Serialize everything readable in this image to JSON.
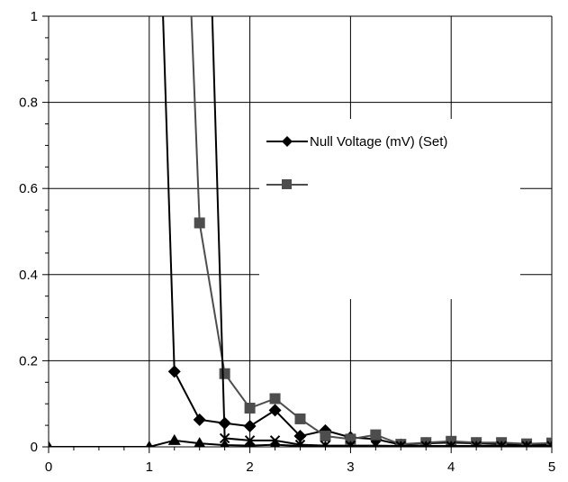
{
  "chart_data": {
    "type": "line",
    "title": "",
    "xlabel": "",
    "ylabel": "",
    "xlim": [
      0,
      5
    ],
    "ylim": [
      0,
      1
    ],
    "xticks": [
      0,
      1,
      2,
      3,
      4,
      5
    ],
    "yticks": [
      0,
      0.2,
      0.4,
      0.6,
      0.8,
      1
    ],
    "x_tick_labels": [
      "0",
      "1",
      "2",
      "3",
      "4",
      "5"
    ],
    "y_tick_labels": [
      "0",
      "0.2",
      "0.4",
      "0.6",
      "0.8",
      "1"
    ],
    "grid": true,
    "legend_position": "right",
    "series": [
      {
        "name": "Null Voltage (mV) (Set)",
        "marker": "diamond",
        "color": "#000000",
        "x": [
          1.0,
          1.25,
          1.5,
          1.75,
          2.0,
          2.25,
          2.5,
          2.75,
          3.0,
          3.25,
          3.5,
          3.75,
          4.0,
          4.25,
          4.5,
          4.75,
          5.0
        ],
        "y": [
          2.0,
          0.175,
          0.063,
          0.055,
          0.048,
          0.085,
          0.025,
          0.038,
          0.022,
          0.018,
          0.005,
          0.008,
          0.01,
          0.008,
          0.006,
          0.004,
          0.006
        ]
      },
      {
        "marker": "square",
        "color": "#4d4d4d",
        "x": [
          1.25,
          1.5,
          1.75,
          2.0,
          2.25,
          2.5,
          2.75,
          3.0,
          3.25,
          3.5,
          3.75,
          4.0,
          4.25,
          4.5,
          4.75,
          5.0
        ],
        "y": [
          2.0,
          0.52,
          0.17,
          0.09,
          0.112,
          0.065,
          0.025,
          0.018,
          0.028,
          0.006,
          0.01,
          0.013,
          0.01,
          0.01,
          0.007,
          0.009
        ]
      },
      {
        "marker": "x",
        "color": "#000000",
        "x": [
          1.5,
          1.75,
          2.0,
          2.25,
          2.5,
          2.75,
          3.0,
          3.25,
          3.5,
          3.75,
          4.0,
          4.25,
          4.5,
          4.75,
          5.0
        ],
        "y": [
          2.0,
          0.02,
          0.015,
          0.015,
          0.005,
          0.003,
          0.003,
          0.003,
          0.002,
          0.002,
          0.002,
          0.002,
          0.002,
          0.002,
          0.002
        ]
      },
      {
        "marker": "triangle",
        "color": "#000000",
        "x": [
          0.0,
          1.0,
          1.25,
          1.5,
          1.75,
          2.0,
          2.25,
          2.5,
          2.75,
          3.0,
          3.25,
          3.5,
          3.75,
          4.0,
          4.25,
          4.5,
          4.75,
          5.0
        ],
        "y": [
          0.0,
          0.0,
          0.015,
          0.008,
          0.004,
          0.003,
          0.005,
          0.002,
          0.0,
          0.0,
          0.0,
          0.0,
          0.0,
          0.0,
          0.0,
          0.0,
          0.0,
          0.0
        ]
      }
    ]
  }
}
